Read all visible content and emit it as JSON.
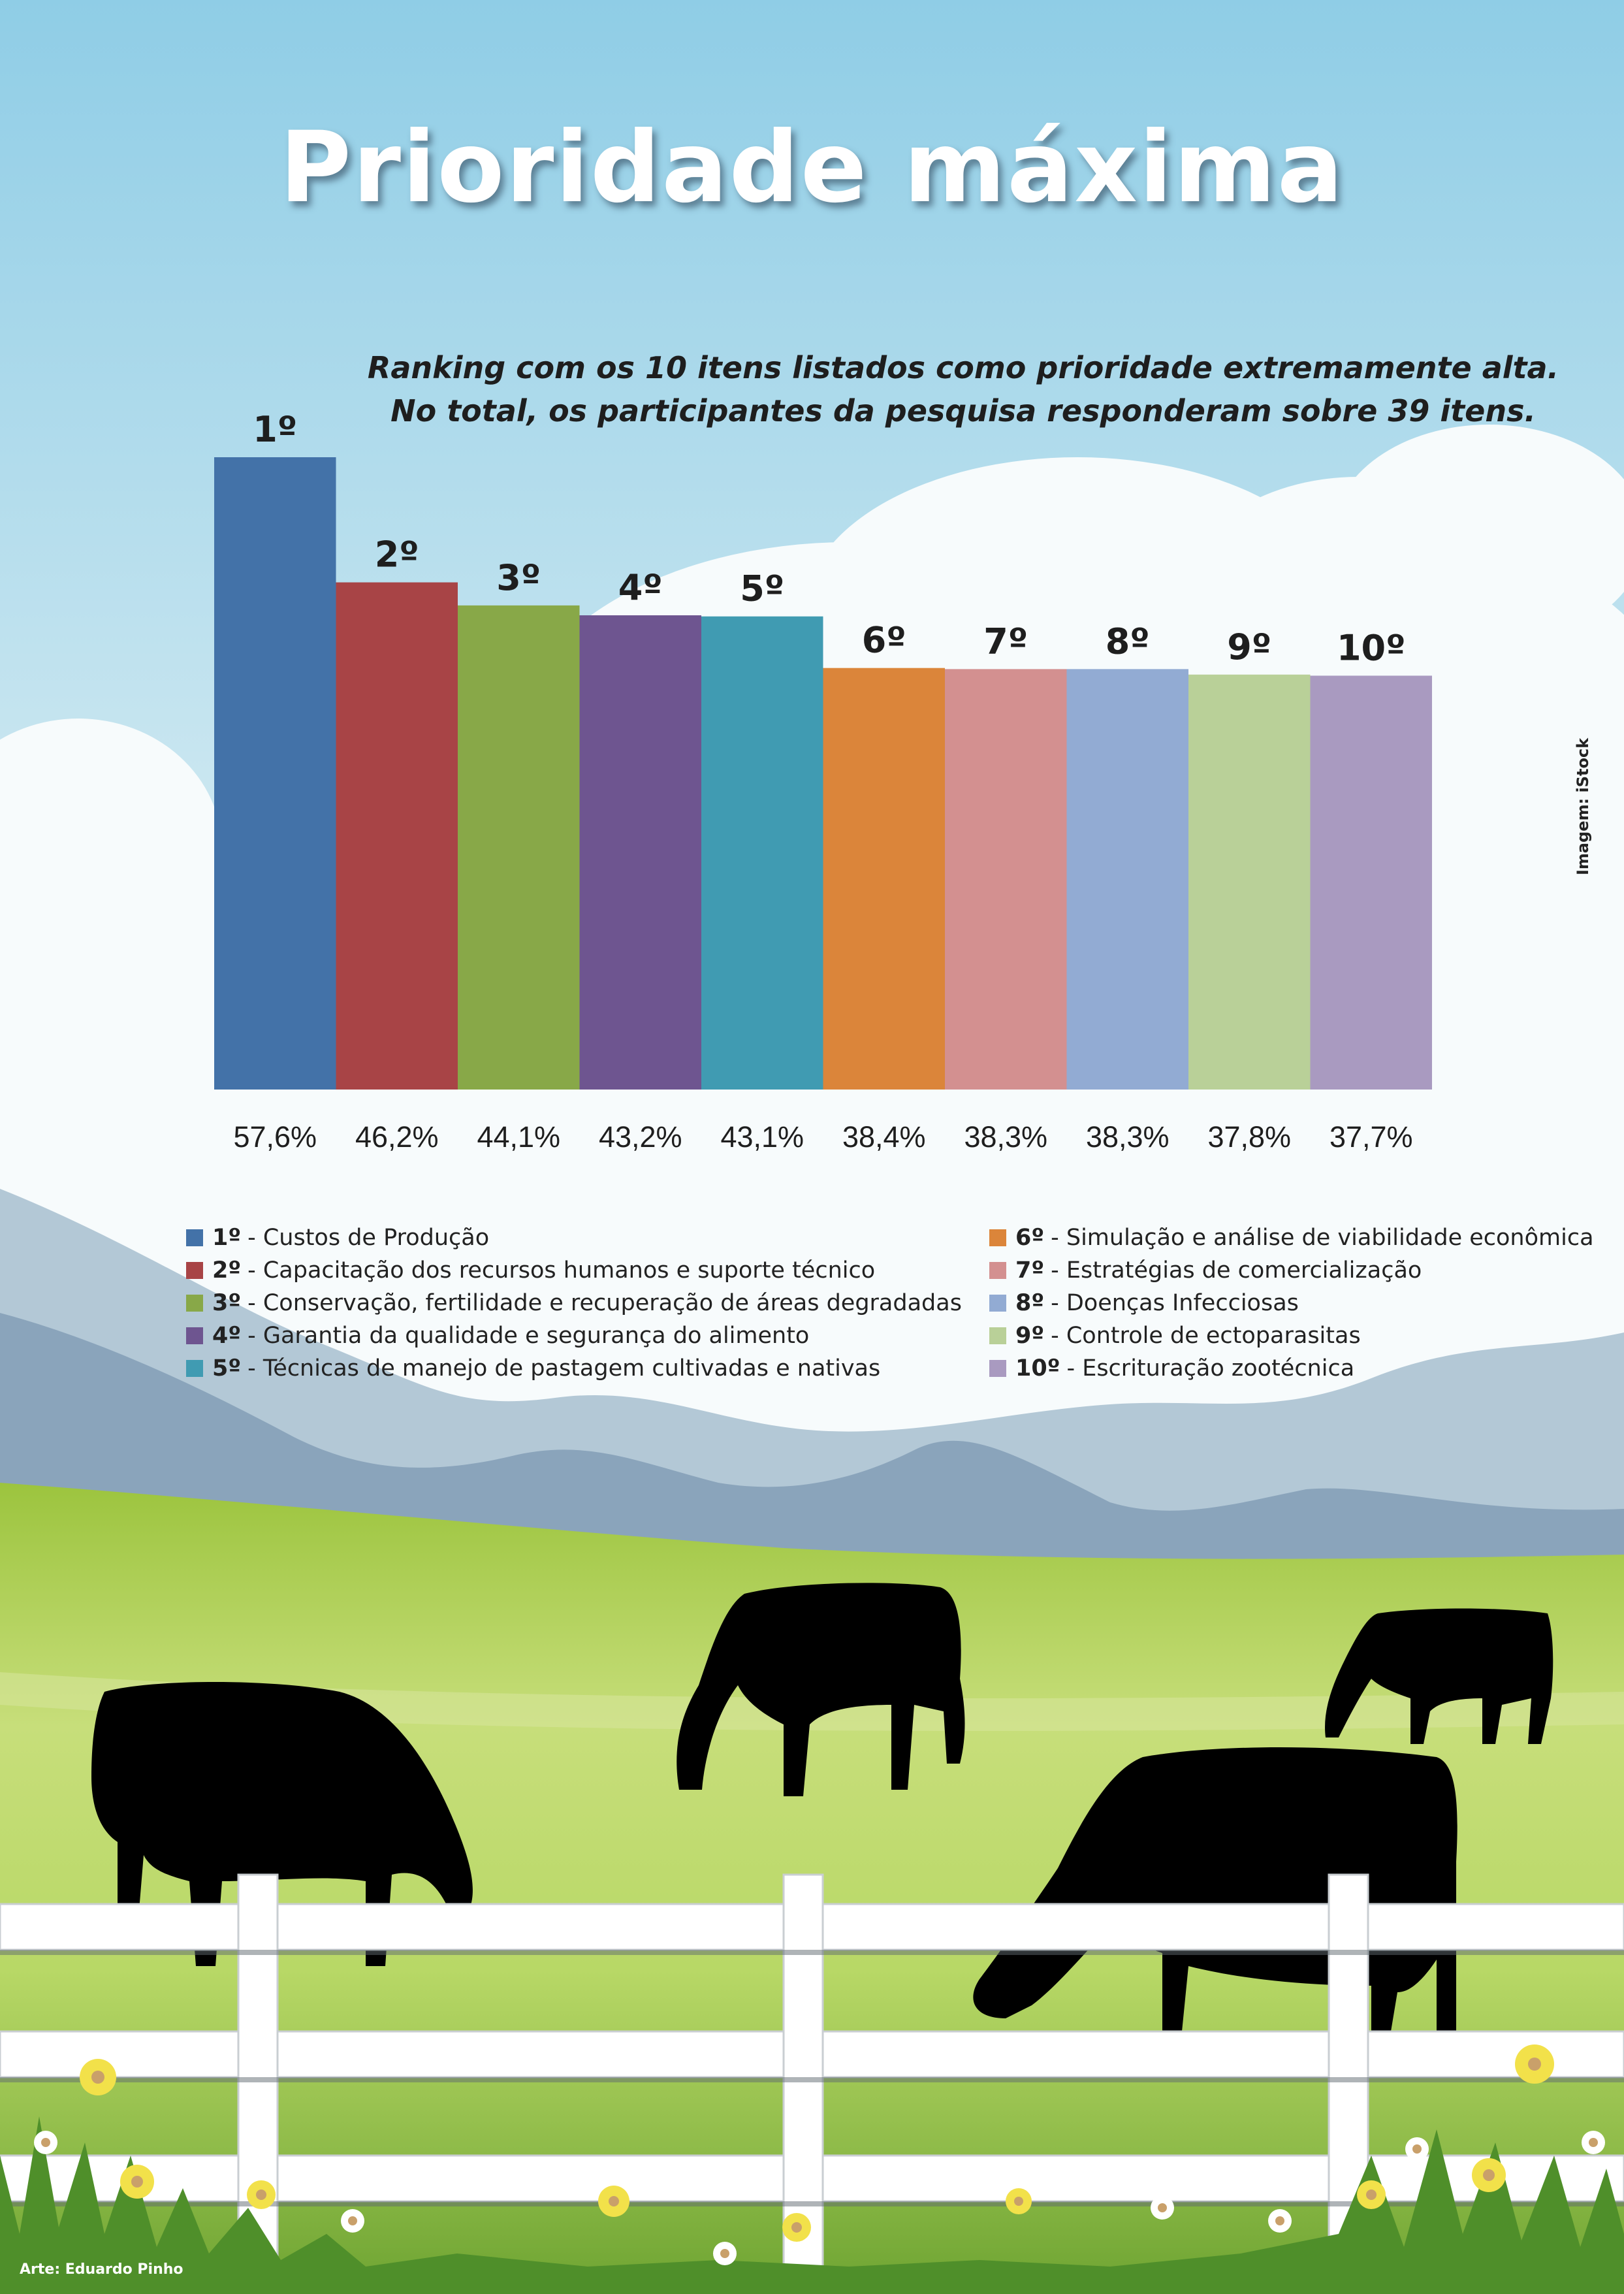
{
  "title": "Prioridade máxima",
  "subtitle_line1": "Ranking com os 10 itens listados como prioridade extremamente alta.",
  "subtitle_line2": "No total, os participantes da pesquisa responderam sobre 39 itens.",
  "credit_image": "Imagem: iStock",
  "credit_art": "Arte: Eduardo Pinho",
  "chart_data": {
    "type": "bar",
    "title": "Prioridade máxima",
    "categories": [
      "1º",
      "2º",
      "3º",
      "4º",
      "5º",
      "6º",
      "7º",
      "8º",
      "9º",
      "10º"
    ],
    "values": [
      57.6,
      46.2,
      44.1,
      43.2,
      43.1,
      38.4,
      38.3,
      38.3,
      37.8,
      37.7
    ],
    "value_labels": [
      "57,6%",
      "46,2%",
      "44,1%",
      "43,2%",
      "43,1%",
      "38,4%",
      "38,3%",
      "38,3%",
      "37,8%",
      "37,7%"
    ],
    "colors": [
      "#4372a8",
      "#a84446",
      "#88a848",
      "#6e5590",
      "#409bb2",
      "#db853a",
      "#d39090",
      "#92abd3",
      "#b9d098",
      "#a99ac0"
    ],
    "ylim": [
      0,
      57.6
    ],
    "legend": [
      {
        "rank": "1º",
        "label": "- Custos de Produção"
      },
      {
        "rank": "2º",
        "label": "- Capacitação dos recursos humanos e suporte técnico"
      },
      {
        "rank": "3º",
        "label": "- Conservação, fertilidade e recuperação de áreas degradadas"
      },
      {
        "rank": "4º",
        "label": "- Garantia da qualidade e segurança do alimento"
      },
      {
        "rank": "5º",
        "label": "- Técnicas de manejo de pastagem cultivadas e nativas"
      },
      {
        "rank": "6º",
        "label": "- Simulação e análise de viabilidade econômica"
      },
      {
        "rank": "7º",
        "label": "- Estratégias de comercialização"
      },
      {
        "rank": "8º",
        "label": "- Doenças Infecciosas"
      },
      {
        "rank": "9º",
        "label": "- Controle de ectoparasitas"
      },
      {
        "rank": "10º",
        "label": "- Escrituração zootécnica"
      }
    ]
  }
}
